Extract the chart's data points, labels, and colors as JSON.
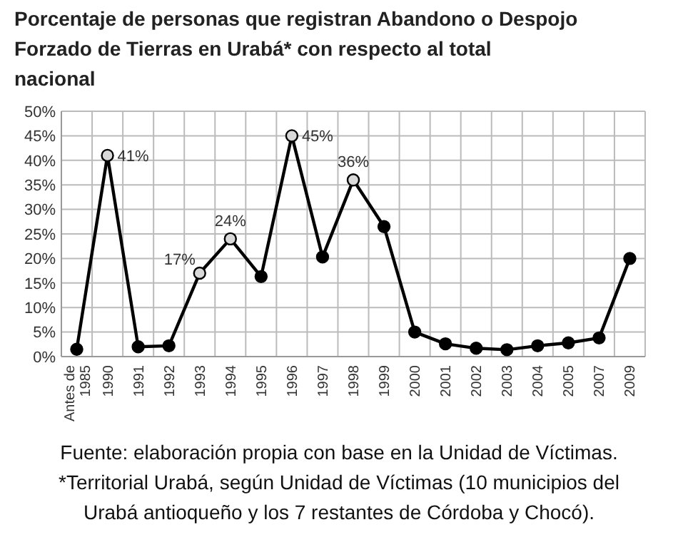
{
  "chart_data": {
    "type": "line",
    "title": "Porcentaje de personas que registran Abandono o Despojo Forzado de Tierras en Urabá* con respecto al total nacional",
    "categories": [
      "Antes de 1985",
      "1990",
      "1991",
      "1992",
      "1993",
      "1994",
      "1995",
      "1996",
      "1997",
      "1998",
      "1999",
      "2000",
      "2001",
      "2002",
      "2003",
      "2004",
      "2005",
      "2007",
      "2009"
    ],
    "series": [
      {
        "color": "#000000",
        "values": [
          1.5,
          41,
          2,
          2.2,
          17,
          24,
          16.3,
          45,
          20.3,
          36,
          26.5,
          5,
          2.6,
          1.7,
          1.4,
          2.2,
          2.8,
          3.8,
          20
        ],
        "value_labels": [
          null,
          "41%",
          null,
          null,
          "17%",
          "24%",
          null,
          "45%",
          null,
          "36%",
          null,
          null,
          null,
          null,
          null,
          null,
          null,
          null,
          null
        ]
      }
    ],
    "ylim": [
      0,
      50
    ],
    "yticks": [
      {
        "value": 0,
        "label": "0%"
      },
      {
        "value": 5,
        "label": "5%"
      },
      {
        "value": 10,
        "label": "10%"
      },
      {
        "value": 15,
        "label": "15%"
      },
      {
        "value": 20,
        "label": "20%"
      },
      {
        "value": 25,
        "label": "25%"
      },
      {
        "value": 30,
        "label": "30%"
      },
      {
        "value": 35,
        "label": "35%"
      },
      {
        "value": 40,
        "label": "40%"
      },
      {
        "value": 45,
        "label": "45%"
      },
      {
        "value": 50,
        "label": "50%"
      }
    ],
    "grid": true,
    "marker": "circle",
    "line_style": "solid",
    "annotations": [
      "Fuente: elaboración propia con base en la Unidad de Víctimas.",
      "*Territorial Urabá, según Unidad de Víctimas (10 municipios del Urabá antioqueño y los 7 restantes de Córdoba y Chocó)."
    ]
  }
}
